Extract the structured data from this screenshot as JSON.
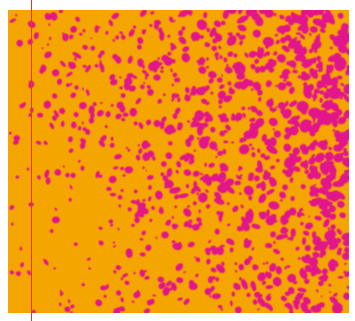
{
  "image": {
    "colors": {
      "background": "#ffffff",
      "base": "#f5a500",
      "secondary": "#e2198a",
      "marker": "#e23a1f"
    },
    "pattern": {
      "seed": 48271,
      "blotches": 3200,
      "gradient_direction": "left-to-right-top",
      "secondary_density_min": 0.05,
      "secondary_density_max": 0.82
    }
  }
}
